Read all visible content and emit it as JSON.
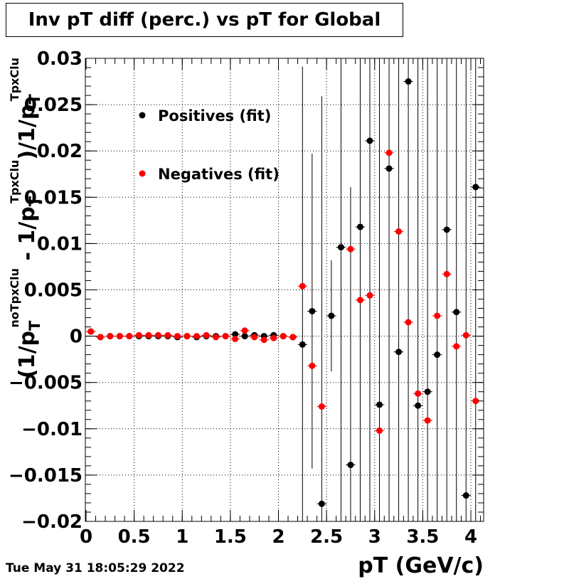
{
  "title": "Inv pT diff (perc.) vs pT for Global",
  "datestamp": "Tue May 31 18:05:29 2022",
  "colors": {
    "positives": "#000000",
    "negatives": "#ff0000"
  },
  "chart_data": {
    "type": "scatter",
    "title": "Inv pT diff (perc.) vs pT for Global",
    "xlabel": "pT (GeV/c)",
    "ylabel": {
      "parts": [
        "(1/p",
        "T",
        "noTpxClu",
        " - 1/p",
        "T",
        "TpxClu",
        ")/1/p",
        "T",
        "TpxClu"
      ]
    },
    "xlim": [
      0,
      4.1
    ],
    "ylim": [
      -0.02,
      0.03
    ],
    "x_ticks": [
      0,
      0.5,
      1,
      1.5,
      2,
      2.5,
      3,
      3.5,
      4
    ],
    "x_tick_labels": [
      "0",
      "0.5",
      "1",
      "1.5",
      "2",
      "2.5",
      "3",
      "3.5",
      "4"
    ],
    "y_ticks": [
      -0.02,
      -0.015,
      -0.01,
      -0.005,
      0,
      0.005,
      0.01,
      0.015,
      0.02,
      0.025,
      0.03
    ],
    "y_tick_labels": [
      "−0.02",
      "−0.015",
      "−0.01",
      "−0.005",
      "0",
      "0.005",
      "0.01",
      "0.015",
      "0.02",
      "0.025",
      "0.03"
    ],
    "grid": true,
    "legend_position": "top-left",
    "series": [
      {
        "name": "Positives (fit)",
        "color": "#000000",
        "points": [
          {
            "x": 0.05,
            "y": 0.0005,
            "err": 0.0002
          },
          {
            "x": 0.15,
            "y": -0.0001,
            "err": 0.0001
          },
          {
            "x": 0.25,
            "y": 0.0,
            "err": 0.0001
          },
          {
            "x": 0.35,
            "y": 0.0,
            "err": 0.0001
          },
          {
            "x": 0.45,
            "y": 0.0,
            "err": 0.0001
          },
          {
            "x": 0.55,
            "y": 0.0,
            "err": 0.0001
          },
          {
            "x": 0.65,
            "y": 0.0,
            "err": 0.0001
          },
          {
            "x": 0.75,
            "y": 0.0,
            "err": 0.0001
          },
          {
            "x": 0.85,
            "y": 0.0,
            "err": 0.0001
          },
          {
            "x": 0.95,
            "y": -0.0001,
            "err": 0.0001
          },
          {
            "x": 1.05,
            "y": 0.0,
            "err": 0.0001
          },
          {
            "x": 1.15,
            "y": -0.0001,
            "err": 0.0001
          },
          {
            "x": 1.25,
            "y": 0.0,
            "err": 0.0001
          },
          {
            "x": 1.35,
            "y": 0.0,
            "err": 0.0001
          },
          {
            "x": 1.45,
            "y": 0.0,
            "err": 0.0001
          },
          {
            "x": 1.55,
            "y": 0.0002,
            "err": 0.0002
          },
          {
            "x": 1.65,
            "y": 0.0,
            "err": 0.0002
          },
          {
            "x": 1.75,
            "y": 0.0001,
            "err": 0.0002
          },
          {
            "x": 1.85,
            "y": 0.0,
            "err": 0.0002
          },
          {
            "x": 1.95,
            "y": 0.0001,
            "err": 0.0002
          },
          {
            "x": 2.05,
            "y": 0.0,
            "err": 0.0002
          },
          {
            "x": 2.15,
            "y": -0.0001,
            "err": 0.0003
          },
          {
            "x": 2.25,
            "y": -0.0009,
            "err": 0.03
          },
          {
            "x": 2.35,
            "y": 0.0027,
            "err": 0.017
          },
          {
            "x": 2.45,
            "y": -0.0181,
            "err": 0.044
          },
          {
            "x": 2.55,
            "y": 0.0022,
            "err": 0.006
          },
          {
            "x": 2.65,
            "y": 0.0096,
            "err": 0.05
          },
          {
            "x": 2.75,
            "y": -0.0139,
            "err": 0.03
          },
          {
            "x": 2.85,
            "y": 0.0118,
            "err": 0.05
          },
          {
            "x": 2.95,
            "y": 0.0211,
            "err": 0.05
          },
          {
            "x": 3.05,
            "y": -0.0074,
            "err": 0.05
          },
          {
            "x": 3.15,
            "y": 0.0181,
            "err": 0.05
          },
          {
            "x": 3.25,
            "y": -0.0017,
            "err": 0.05
          },
          {
            "x": 3.35,
            "y": 0.0275,
            "err": 0.05
          },
          {
            "x": 3.45,
            "y": -0.0075,
            "err": 0.05
          },
          {
            "x": 3.55,
            "y": -0.006,
            "err": 0.05
          },
          {
            "x": 3.65,
            "y": -0.002,
            "err": 0.05
          },
          {
            "x": 3.75,
            "y": 0.0115,
            "err": 0.05
          },
          {
            "x": 3.85,
            "y": 0.0026,
            "err": 0.05
          },
          {
            "x": 3.95,
            "y": -0.0172,
            "err": 0.05
          },
          {
            "x": 4.05,
            "y": 0.0161,
            "err": 0.05
          }
        ]
      },
      {
        "name": "Negatives (fit)",
        "color": "#ff0000",
        "points": [
          {
            "x": 0.05,
            "y": 0.0005,
            "err": 0.0002
          },
          {
            "x": 0.15,
            "y": -0.0001,
            "err": 0.0001
          },
          {
            "x": 0.25,
            "y": 0.0,
            "err": 0.0001
          },
          {
            "x": 0.35,
            "y": 0.0,
            "err": 0.0001
          },
          {
            "x": 0.45,
            "y": 0.0,
            "err": 0.0001
          },
          {
            "x": 0.55,
            "y": 0.0001,
            "err": 0.0001
          },
          {
            "x": 0.65,
            "y": 0.0001,
            "err": 0.0001
          },
          {
            "x": 0.75,
            "y": 0.0001,
            "err": 0.0001
          },
          {
            "x": 0.85,
            "y": 0.0001,
            "err": 0.0001
          },
          {
            "x": 0.95,
            "y": 0.0,
            "err": 0.0001
          },
          {
            "x": 1.05,
            "y": 0.0,
            "err": 0.0001
          },
          {
            "x": 1.15,
            "y": 0.0,
            "err": 0.0001
          },
          {
            "x": 1.25,
            "y": 0.0001,
            "err": 0.0001
          },
          {
            "x": 1.35,
            "y": -0.0001,
            "err": 0.0001
          },
          {
            "x": 1.45,
            "y": 0.0,
            "err": 0.0001
          },
          {
            "x": 1.55,
            "y": -0.0003,
            "err": 0.0002
          },
          {
            "x": 1.65,
            "y": 0.0006,
            "err": 0.0002
          },
          {
            "x": 1.75,
            "y": -0.0001,
            "err": 0.0002
          },
          {
            "x": 1.85,
            "y": -0.0004,
            "err": 0.0002
          },
          {
            "x": 1.95,
            "y": -0.0002,
            "err": 0.0002
          },
          {
            "x": 2.05,
            "y": 0.0,
            "err": 0.0002
          },
          {
            "x": 2.15,
            "y": -0.0001,
            "err": 0.0003
          },
          {
            "x": 2.25,
            "y": 0.0054,
            "err": 0.0003
          },
          {
            "x": 2.35,
            "y": -0.0032,
            "err": 0.0003
          },
          {
            "x": 2.45,
            "y": -0.0076,
            "err": 0.0003
          },
          {
            "x": 2.75,
            "y": 0.0094,
            "err": 0.0003
          },
          {
            "x": 2.85,
            "y": 0.0039,
            "err": 0.0003
          },
          {
            "x": 2.95,
            "y": 0.0044,
            "err": 0.0003
          },
          {
            "x": 3.05,
            "y": -0.0102,
            "err": 0.0003
          },
          {
            "x": 3.15,
            "y": 0.0198,
            "err": 0.0003
          },
          {
            "x": 3.25,
            "y": 0.0113,
            "err": 0.0003
          },
          {
            "x": 3.35,
            "y": 0.0015,
            "err": 0.0003
          },
          {
            "x": 3.45,
            "y": -0.0062,
            "err": 0.0003
          },
          {
            "x": 3.55,
            "y": -0.0091,
            "err": 0.0003
          },
          {
            "x": 3.65,
            "y": 0.0022,
            "err": 0.0003
          },
          {
            "x": 3.75,
            "y": 0.0067,
            "err": 0.0003
          },
          {
            "x": 3.85,
            "y": -0.0011,
            "err": 0.0003
          },
          {
            "x": 3.95,
            "y": 0.0001,
            "err": 0.0003
          },
          {
            "x": 4.05,
            "y": -0.007,
            "err": 0.0003
          }
        ]
      }
    ]
  }
}
